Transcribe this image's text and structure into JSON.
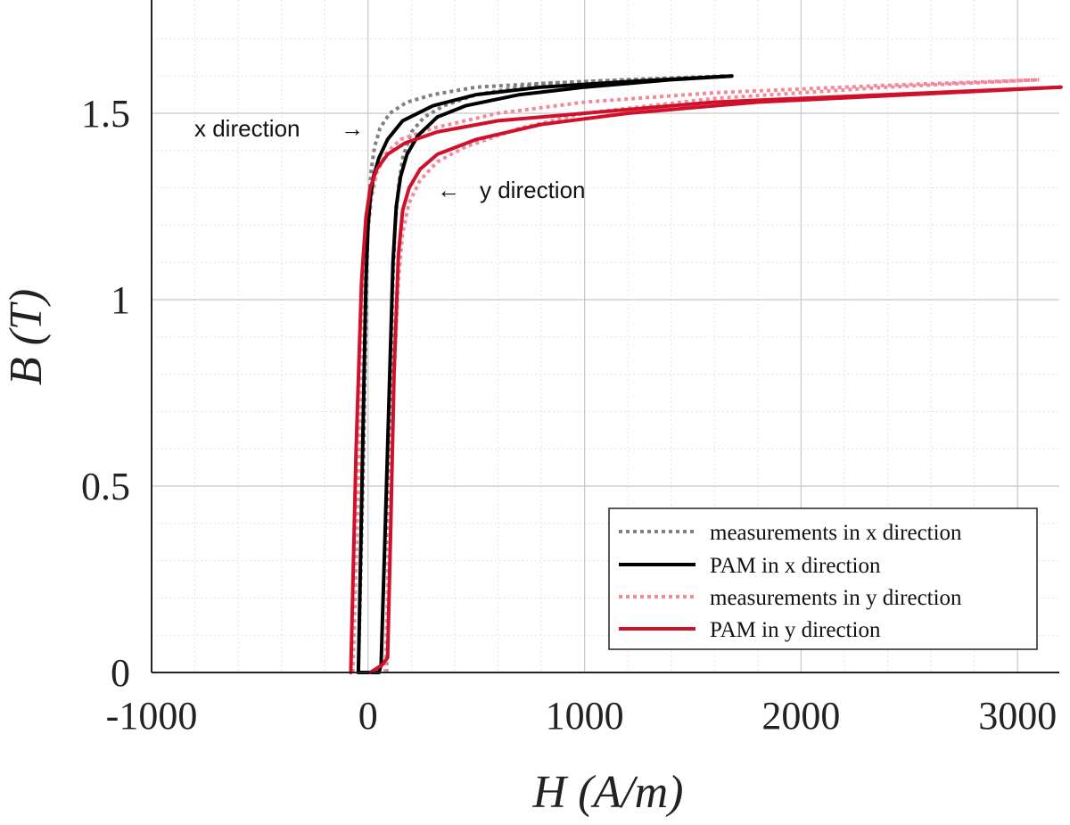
{
  "chart_data": {
    "type": "line",
    "title": "",
    "xlabel": "H (A/m)",
    "ylabel": "B (T)",
    "xlim": [
      -1000,
      3200
    ],
    "ylim": [
      0,
      1.75
    ],
    "xticks": [
      -1000,
      0,
      1000,
      2000,
      3000
    ],
    "yticks": [
      0,
      0.5,
      1,
      1.5
    ],
    "xtick_labels": [
      "-1000",
      "0",
      "1000",
      "2000",
      "3000"
    ],
    "ytick_labels": [
      "0",
      "0.5",
      "1",
      "1.5"
    ],
    "grid": "major and minor",
    "legend_position": "bottom-right",
    "annotations": [
      {
        "text": "x direction",
        "arrow": "→"
      },
      {
        "text": "y direction",
        "arrow": "←"
      }
    ],
    "series": [
      {
        "name": "measurements in x direction",
        "color": "#808080",
        "style": "dotted",
        "branches": [
          {
            "x": [
              -45,
              -20,
              -5,
              0,
              5,
              15,
              30,
              55,
              100,
              180,
              300,
              500,
              800,
              1200,
              1650
            ],
            "y": [
              0,
              0.6,
              1.1,
              1.2,
              1.27,
              1.35,
              1.41,
              1.46,
              1.5,
              1.53,
              1.55,
              1.57,
              1.58,
              1.59,
              1.6
            ]
          },
          {
            "x": [
              85,
              95,
              105,
              115,
              125,
              140,
              160,
              200,
              260,
              350,
              500,
              800,
              1200,
              1650
            ],
            "y": [
              0,
              0.4,
              0.8,
              1.05,
              1.2,
              1.3,
              1.38,
              1.45,
              1.49,
              1.52,
              1.55,
              1.58,
              1.59,
              1.6
            ]
          }
        ]
      },
      {
        "name": "PAM in x direction",
        "color": "#000000",
        "style": "solid",
        "branches": [
          {
            "x": [
              -45,
              -25,
              -10,
              0,
              10,
              25,
              50,
              90,
              160,
              300,
              500,
              800,
              1200,
              1680
            ],
            "y": [
              0,
              0.6,
              1.05,
              1.2,
              1.27,
              1.33,
              1.38,
              1.43,
              1.48,
              1.52,
              1.55,
              1.57,
              1.585,
              1.6
            ]
          },
          {
            "x": [
              -45,
              10,
              50,
              60,
              80,
              100,
              115,
              130,
              150,
              180,
              230,
              320,
              450,
              700,
              1000,
              1400,
              1680
            ],
            "y": [
              0,
              0,
              0,
              0.02,
              0.4,
              0.8,
              1.1,
              1.25,
              1.33,
              1.39,
              1.44,
              1.49,
              1.52,
              1.55,
              1.57,
              1.59,
              1.6
            ]
          }
        ]
      },
      {
        "name": "measurements in y direction",
        "color": "#f08c9a",
        "style": "dotted",
        "branches": [
          {
            "x": [
              -70,
              -40,
              -15,
              0,
              15,
              40,
              80,
              150,
              300,
              600,
              1000,
              1600,
              2400,
              3100
            ],
            "y": [
              0,
              0.6,
              1.05,
              1.18,
              1.27,
              1.34,
              1.39,
              1.43,
              1.46,
              1.5,
              1.53,
              1.555,
              1.575,
              1.59
            ]
          },
          {
            "x": [
              80,
              100,
              120,
              140,
              160,
              190,
              240,
              320,
              450,
              700,
              1000,
              1600,
              2400,
              3100
            ],
            "y": [
              0,
              0.4,
              0.8,
              1.05,
              1.18,
              1.26,
              1.32,
              1.37,
              1.41,
              1.46,
              1.5,
              1.54,
              1.57,
              1.59
            ]
          }
        ]
      },
      {
        "name": "PAM in y direction",
        "color": "#d0112b",
        "style": "solid",
        "branches": [
          {
            "x": [
              -80,
              -55,
              -30,
              -10,
              10,
              40,
              90,
              170,
              320,
              600,
              1000,
              1600,
              2400,
              3200
            ],
            "y": [
              0,
              0.6,
              1.05,
              1.22,
              1.3,
              1.35,
              1.39,
              1.42,
              1.45,
              1.48,
              1.5,
              1.53,
              1.55,
              1.57
            ]
          },
          {
            "x": [
              10,
              65,
              90,
              105,
              120,
              140,
              160,
              190,
              240,
              320,
              500,
              800,
              1200,
              1800,
              2500,
              3200
            ],
            "y": [
              0,
              0.02,
              0.04,
              0.4,
              0.8,
              1.12,
              1.24,
              1.3,
              1.35,
              1.39,
              1.43,
              1.47,
              1.5,
              1.53,
              1.55,
              1.57
            ]
          }
        ]
      }
    ]
  }
}
